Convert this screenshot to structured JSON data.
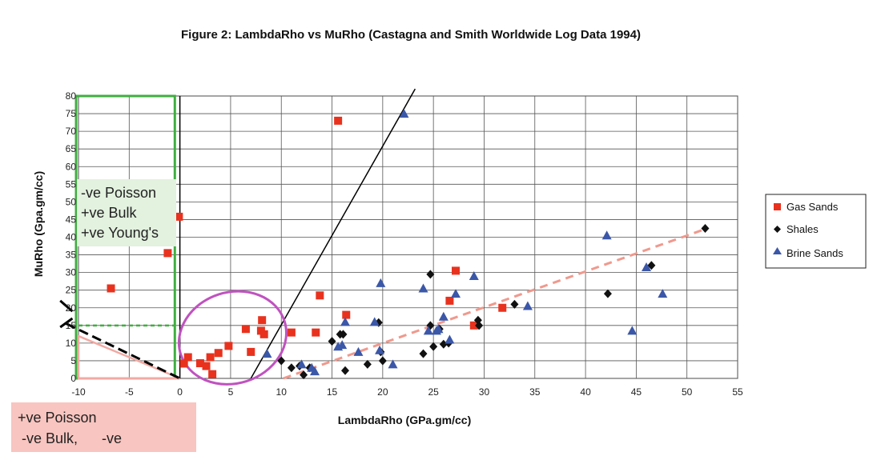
{
  "chart_data": {
    "type": "scatter",
    "title": "Figure 2: LambdaRho vs MuRho (Castagna and Smith Worldwide Log Data 1994)",
    "xlabel": "LambdaRho (GPa.gm/cc)",
    "ylabel": "MuRho (Gpa.gm/cc)",
    "xlim": [
      -10,
      55
    ],
    "ylim": [
      0,
      80
    ],
    "xticks": [
      "-10",
      "-5",
      "0",
      "5",
      "10",
      "15",
      "20",
      "25",
      "30",
      "35",
      "40",
      "45",
      "50",
      "55"
    ],
    "yticks": [
      "0",
      "5",
      "10",
      "15",
      "20",
      "25",
      "30",
      "35",
      "40",
      "45",
      "50",
      "55",
      "60",
      "65",
      "70",
      "75",
      "80"
    ],
    "grid": true,
    "legend_position": "right",
    "series": [
      {
        "name": "Gas Sands",
        "marker": "square",
        "color": "#e8321e",
        "points": [
          [
            -6.8,
            25.5
          ],
          [
            -1.2,
            35.5
          ],
          [
            -0.1,
            45.8
          ],
          [
            0.4,
            4.2
          ],
          [
            0.8,
            6.0
          ],
          [
            2.0,
            4.3
          ],
          [
            2.6,
            3.5
          ],
          [
            3.0,
            6.0
          ],
          [
            3.2,
            1.2
          ],
          [
            3.8,
            7.2
          ],
          [
            4.8,
            9.2
          ],
          [
            6.5,
            14.0
          ],
          [
            7.0,
            7.5
          ],
          [
            8.0,
            13.5
          ],
          [
            8.1,
            16.5
          ],
          [
            8.3,
            12.5
          ],
          [
            11.0,
            13.0
          ],
          [
            13.4,
            13.0
          ],
          [
            13.8,
            23.5
          ],
          [
            15.6,
            73.0
          ],
          [
            16.4,
            18.0
          ],
          [
            26.6,
            22.0
          ],
          [
            27.2,
            30.5
          ],
          [
            29.0,
            15.0
          ],
          [
            31.8,
            20.0
          ]
        ]
      },
      {
        "name": "Shales",
        "marker": "diamond",
        "color": "#111111",
        "points": [
          [
            10.0,
            5.0
          ],
          [
            11.0,
            3.0
          ],
          [
            11.8,
            3.5
          ],
          [
            12.2,
            1.0
          ],
          [
            12.8,
            3.0
          ],
          [
            15.0,
            10.5
          ],
          [
            15.8,
            12.5
          ],
          [
            16.1,
            12.5
          ],
          [
            16.3,
            2.2
          ],
          [
            18.5,
            4.0
          ],
          [
            19.6,
            15.8
          ],
          [
            19.8,
            7.5
          ],
          [
            20.0,
            5.0
          ],
          [
            24.0,
            7.0
          ],
          [
            24.7,
            15.0
          ],
          [
            24.7,
            29.5
          ],
          [
            25.0,
            9.0
          ],
          [
            25.6,
            14.0
          ],
          [
            26.0,
            9.7
          ],
          [
            26.5,
            10.0
          ],
          [
            29.4,
            16.5
          ],
          [
            29.5,
            15.0
          ],
          [
            33.0,
            21.0
          ],
          [
            42.2,
            24.0
          ],
          [
            46.5,
            32.0
          ],
          [
            51.8,
            42.5
          ]
        ]
      },
      {
        "name": "Brine Sands",
        "marker": "triangle",
        "color": "#3b57a8",
        "points": [
          [
            8.6,
            7.0
          ],
          [
            12.0,
            4.0
          ],
          [
            13.0,
            3.0
          ],
          [
            13.3,
            2.0
          ],
          [
            15.6,
            9.0
          ],
          [
            16.0,
            9.5
          ],
          [
            16.3,
            16.0
          ],
          [
            17.6,
            7.5
          ],
          [
            19.2,
            16.0
          ],
          [
            19.7,
            8.0
          ],
          [
            19.8,
            27.0
          ],
          [
            21.0,
            4.0
          ],
          [
            22.1,
            75.0
          ],
          [
            24.0,
            25.5
          ],
          [
            24.5,
            13.5
          ],
          [
            25.3,
            13.5
          ],
          [
            25.5,
            14.0
          ],
          [
            26.0,
            17.5
          ],
          [
            26.6,
            11.0
          ],
          [
            27.2,
            24.0
          ],
          [
            29.0,
            29.0
          ],
          [
            34.3,
            20.5
          ],
          [
            42.1,
            40.5
          ],
          [
            44.6,
            13.5
          ],
          [
            46.0,
            31.5
          ],
          [
            47.6,
            24.0
          ]
        ]
      }
    ],
    "lines": [
      {
        "style": "solid",
        "color": "#000000",
        "points": [
          [
            7.0,
            0
          ],
          [
            23.2,
            82
          ]
        ]
      },
      {
        "style": "dashed",
        "color": "#f0998d",
        "points": [
          [
            10.2,
            0
          ],
          [
            52.0,
            42.5
          ]
        ]
      },
      {
        "style": "solid",
        "color": "#000000",
        "points": [
          [
            0,
            0
          ],
          [
            0,
            80
          ]
        ]
      }
    ],
    "annotations": {
      "negative_poisson": [
        "-ve Poisson",
        "+ve Bulk",
        "+ve Young's"
      ],
      "positive_poisson": [
        "+ve Poisson",
        " -ve Bulk,      -ve"
      ]
    },
    "colors": {
      "green_region": "#3fae3f",
      "green_box_fill": "#e3f1df",
      "pink_region": "#f2a9a2",
      "pink_box_fill": "#f8c5c0",
      "ellipse": "#c052c0"
    }
  }
}
